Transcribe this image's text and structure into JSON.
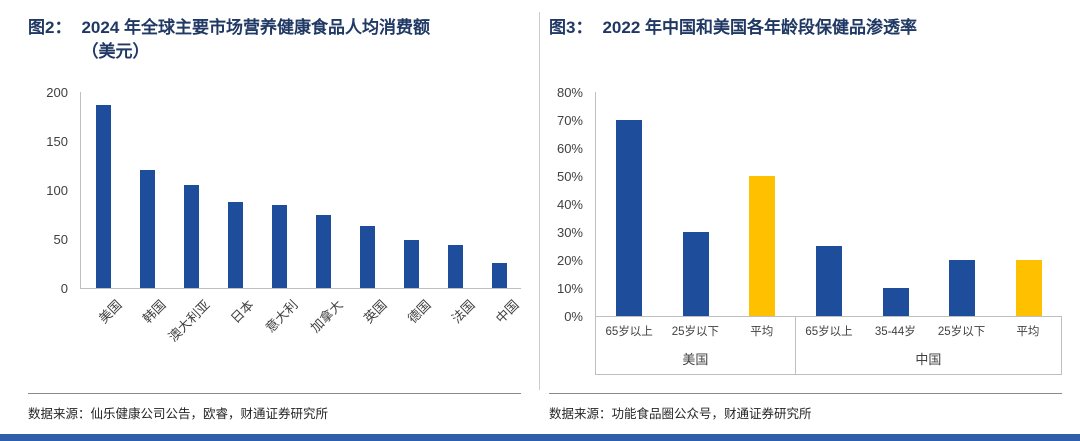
{
  "figures": [
    {
      "label": "图2：",
      "title_line1": "2024 年全球主要市场营养健康食品人均消费额",
      "title_line2": "（美元）",
      "source": "数据来源：仙乐健康公司公告，欧睿，财通证券研究所"
    },
    {
      "label": "图3：",
      "title_line1": "2022 年中国和美国各年龄段保健品渗透率",
      "title_line2": "",
      "source": "数据来源：功能食品圈公众号，财通证券研究所"
    }
  ],
  "chart_data": [
    {
      "type": "bar",
      "title": "2024 年全球主要市场营养健康食品人均消费额（美元）",
      "categories": [
        "美国",
        "韩国",
        "澳大利亚",
        "日本",
        "意大利",
        "加拿大",
        "英国",
        "德国",
        "法国",
        "中国"
      ],
      "values": [
        187,
        120,
        105,
        88,
        85,
        75,
        63,
        49,
        44,
        26
      ],
      "xlabel": "",
      "ylabel": "",
      "ylim": [
        0,
        200
      ],
      "yticks": [
        0,
        50,
        100,
        150,
        200
      ],
      "ytick_suffix": "",
      "bar_color": "#1E4D9B",
      "grid": false,
      "legend": false,
      "x_label_rotation": -45
    },
    {
      "type": "bar",
      "title": "2022 年中国和美国各年龄段保健品渗透率",
      "xlabel": "",
      "ylabel": "",
      "ylim": [
        0,
        80
      ],
      "yticks": [
        0,
        10,
        20,
        30,
        40,
        50,
        60,
        70,
        80
      ],
      "ytick_suffix": "%",
      "bar_color": "#1E4D9B",
      "highlight_color": "#FFC000",
      "grid": false,
      "legend": false,
      "groups": [
        {
          "label": "美国",
          "categories": [
            "65岁以上",
            "25岁以下",
            "平均"
          ],
          "values": [
            70,
            30,
            50
          ],
          "highlight": [
            false,
            false,
            true
          ]
        },
        {
          "label": "中国",
          "categories": [
            "65岁以上",
            "35-44岁",
            "25岁以下",
            "平均"
          ],
          "values": [
            25,
            10,
            20,
            20
          ],
          "highlight": [
            false,
            false,
            false,
            true
          ]
        }
      ]
    }
  ],
  "colors": {
    "bar_blue": "#1E4D9B",
    "bar_yellow": "#FFC000",
    "title_navy": "#1F3864",
    "axis_gray": "#BFBFBF",
    "bottom_bar": "#2E5FA8"
  }
}
